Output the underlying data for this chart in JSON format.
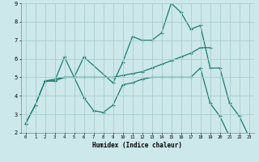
{
  "xlabel": "Humidex (Indice chaleur)",
  "bg_color": "#cce8ea",
  "grid_color": "#aacdd0",
  "line_color": "#1e7a72",
  "xlim": [
    -0.5,
    23.5
  ],
  "ylim": [
    2,
    9
  ],
  "xticks": [
    0,
    1,
    2,
    3,
    4,
    5,
    6,
    7,
    8,
    9,
    10,
    11,
    12,
    13,
    14,
    15,
    16,
    17,
    18,
    19,
    20,
    21,
    22,
    23
  ],
  "yticks": [
    2,
    3,
    4,
    5,
    6,
    7,
    8,
    9
  ],
  "series": [
    {
      "x": [
        0,
        1,
        2,
        3,
        4,
        5,
        6,
        7,
        8,
        9,
        10,
        11,
        12,
        13,
        14,
        15,
        16,
        17,
        18,
        19
      ],
      "y": [
        2.5,
        3.5,
        4.8,
        4.8,
        5.0,
        5.0,
        5.0,
        5.0,
        5.0,
        5.0,
        5.1,
        5.2,
        5.3,
        5.5,
        5.7,
        5.9,
        6.1,
        6.3,
        6.6,
        6.6
      ]
    },
    {
      "x": [
        0,
        1,
        2,
        3,
        4,
        5,
        6,
        7,
        8,
        9,
        10,
        11,
        12,
        13,
        14,
        15,
        16,
        17,
        18,
        19,
        20,
        21
      ],
      "y": [
        2.5,
        3.5,
        4.8,
        4.8,
        6.1,
        5.0,
        3.9,
        3.2,
        3.1,
        3.5,
        4.6,
        4.7,
        4.9,
        5.0,
        5.0,
        5.0,
        5.0,
        5.0,
        5.5,
        3.6,
        2.9,
        1.8
      ]
    },
    {
      "x": [
        2,
        4,
        5,
        6,
        9,
        10,
        11,
        12,
        13,
        14,
        15,
        16,
        17,
        18,
        19,
        20,
        21,
        22,
        23
      ],
      "y": [
        4.8,
        5.0,
        5.0,
        6.1,
        4.7,
        5.8,
        7.2,
        7.0,
        7.0,
        7.4,
        9.0,
        8.5,
        7.6,
        7.8,
        5.5,
        5.5,
        3.6,
        2.9,
        1.8
      ]
    }
  ]
}
